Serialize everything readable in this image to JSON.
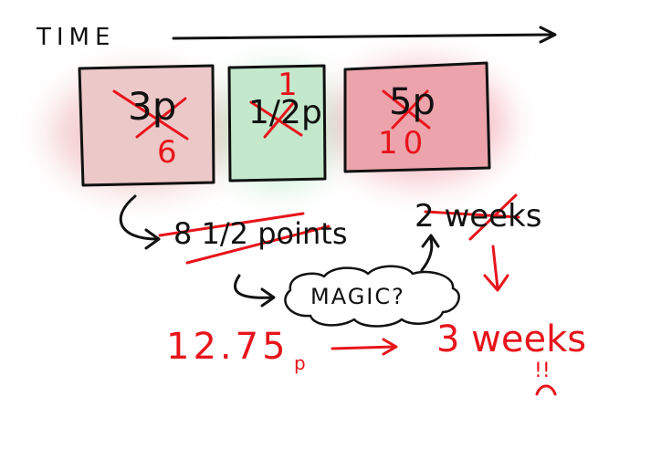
{
  "timeline": {
    "label": "TIME"
  },
  "boxes": [
    {
      "original": "3p",
      "revised": "6",
      "tint": "#ecc3c3"
    },
    {
      "original": "1/2p",
      "revised": "1",
      "tint": "#bfe6c7"
    },
    {
      "original": "5p",
      "revised": "10",
      "tint": "#ec9ea6"
    }
  ],
  "estimate": {
    "points_text": "8 1/2 points",
    "weeks_text": "2 weeks",
    "magic_text": "MAGIC?"
  },
  "revised": {
    "points_text": "12.75",
    "points_unit": "p",
    "weeks_text": "3 weeks",
    "reaction": "!!"
  },
  "colors": {
    "ink": "#111111",
    "correction": "#e8141b"
  }
}
